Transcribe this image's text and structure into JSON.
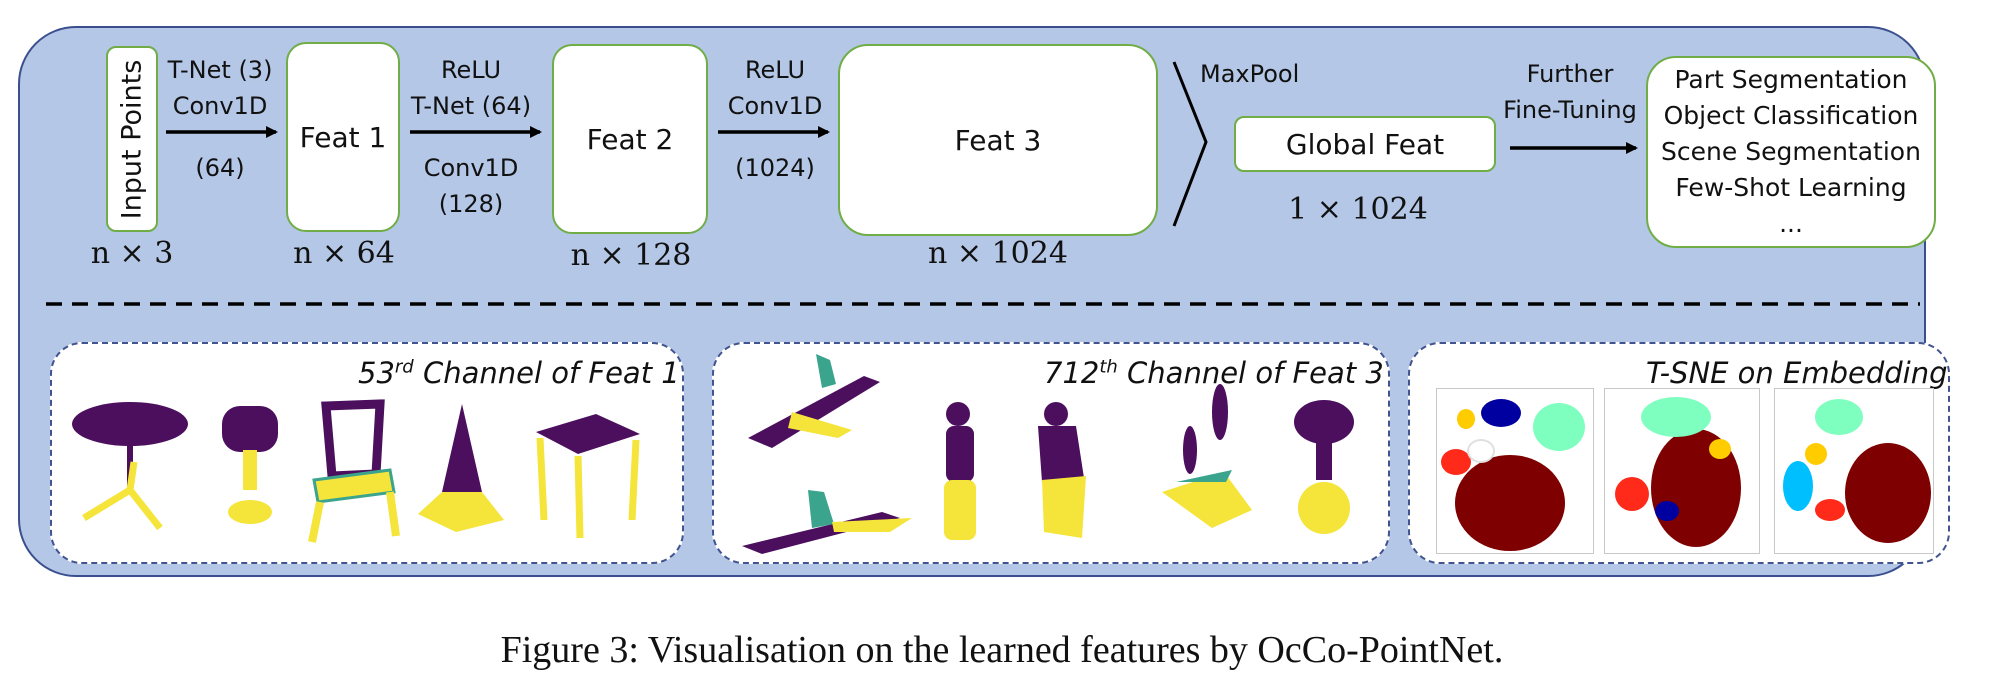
{
  "pipeline": {
    "input_box": "Input Points",
    "input_dim": "n × 3",
    "arrow1": [
      "T-Net (3)",
      "Conv1D",
      "(64)"
    ],
    "feat1": "Feat 1",
    "feat1_dim": "n × 64",
    "arrow2_top": [
      "ReLU",
      "T-Net (64)"
    ],
    "arrow2_bottom": [
      "Conv1D",
      "(128)"
    ],
    "feat2": "Feat 2",
    "feat2_dim": "n × 128",
    "arrow3_top": [
      "ReLU",
      "Conv1D"
    ],
    "arrow3_bottom": "(1024)",
    "feat3": "Feat 3",
    "feat3_dim": "n × 1024",
    "maxpool": "MaxPool",
    "global_feat": "Global Feat",
    "global_dim": "1 × 1024",
    "finetune": [
      "Further",
      "Fine-Tuning"
    ],
    "tasks": [
      "Part Segmentation",
      "Object Classification",
      "Scene Segmentation",
      "Few-Shot Learning",
      "..."
    ]
  },
  "visualisations": {
    "panel1": {
      "num": "53",
      "sup": "rd",
      "rest": " Channel of Feat 1"
    },
    "panel2": {
      "num": "712",
      "sup": "th",
      "rest": " Channel of Feat 3"
    },
    "panel3": {
      "title": "T-SNE on Embedding"
    }
  },
  "colors": {
    "panel_fill": "#b4c7e7",
    "panel_border": "#3b4f8e",
    "box_border": "#70ad47",
    "feat_low": "#4b0f5e",
    "feat_high": "#f5e43a",
    "feat_mid": "#3aa58c"
  },
  "caption": "Figure 3: Visualisation on the learned features by OcCo-PointNet."
}
